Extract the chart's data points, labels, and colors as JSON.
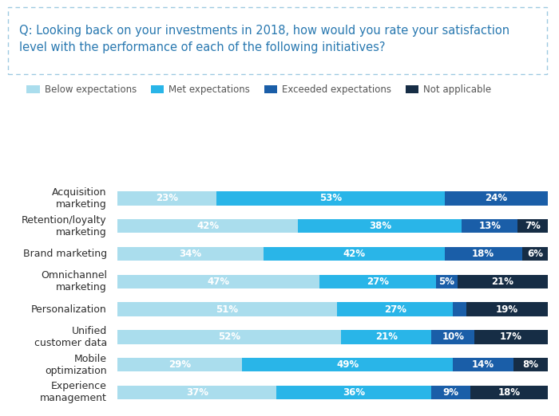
{
  "question_line1": "Q: Looking back on your investments in 2018, how would you rate your satisfaction",
  "question_line2": "level with the performance of each of the following initiatives?",
  "categories": [
    "Acquisition\nmarketing",
    "Retention/loyalty\nmarketing",
    "Brand marketing",
    "Omnichannel\nmarketing",
    "Personalization",
    "Unified\ncustomer data",
    "Mobile\noptimization",
    "Experience\nmanagement"
  ],
  "legend_labels": [
    "Below expectations",
    "Met expectations",
    "Exceeded expectations",
    "Not applicable"
  ],
  "colors": [
    "#aadded",
    "#29b5e8",
    "#1a5ea8",
    "#162d45"
  ],
  "data": [
    [
      23,
      53,
      24,
      0
    ],
    [
      42,
      38,
      13,
      7
    ],
    [
      34,
      42,
      18,
      6
    ],
    [
      47,
      27,
      5,
      21
    ],
    [
      51,
      27,
      3,
      19
    ],
    [
      52,
      21,
      10,
      17
    ],
    [
      29,
      49,
      14,
      8
    ],
    [
      37,
      36,
      9,
      18
    ]
  ],
  "background_color": "#ffffff",
  "bar_height": 0.5,
  "text_color_white": "#ffffff",
  "question_color": "#2878b0",
  "label_color": "#2d2d2d",
  "legend_color": "#555555",
  "box_edge_color": "#9ecae1",
  "question_fontsize": 10.5,
  "label_fontsize": 9.0,
  "value_fontsize": 8.5,
  "legend_fontsize": 8.5
}
